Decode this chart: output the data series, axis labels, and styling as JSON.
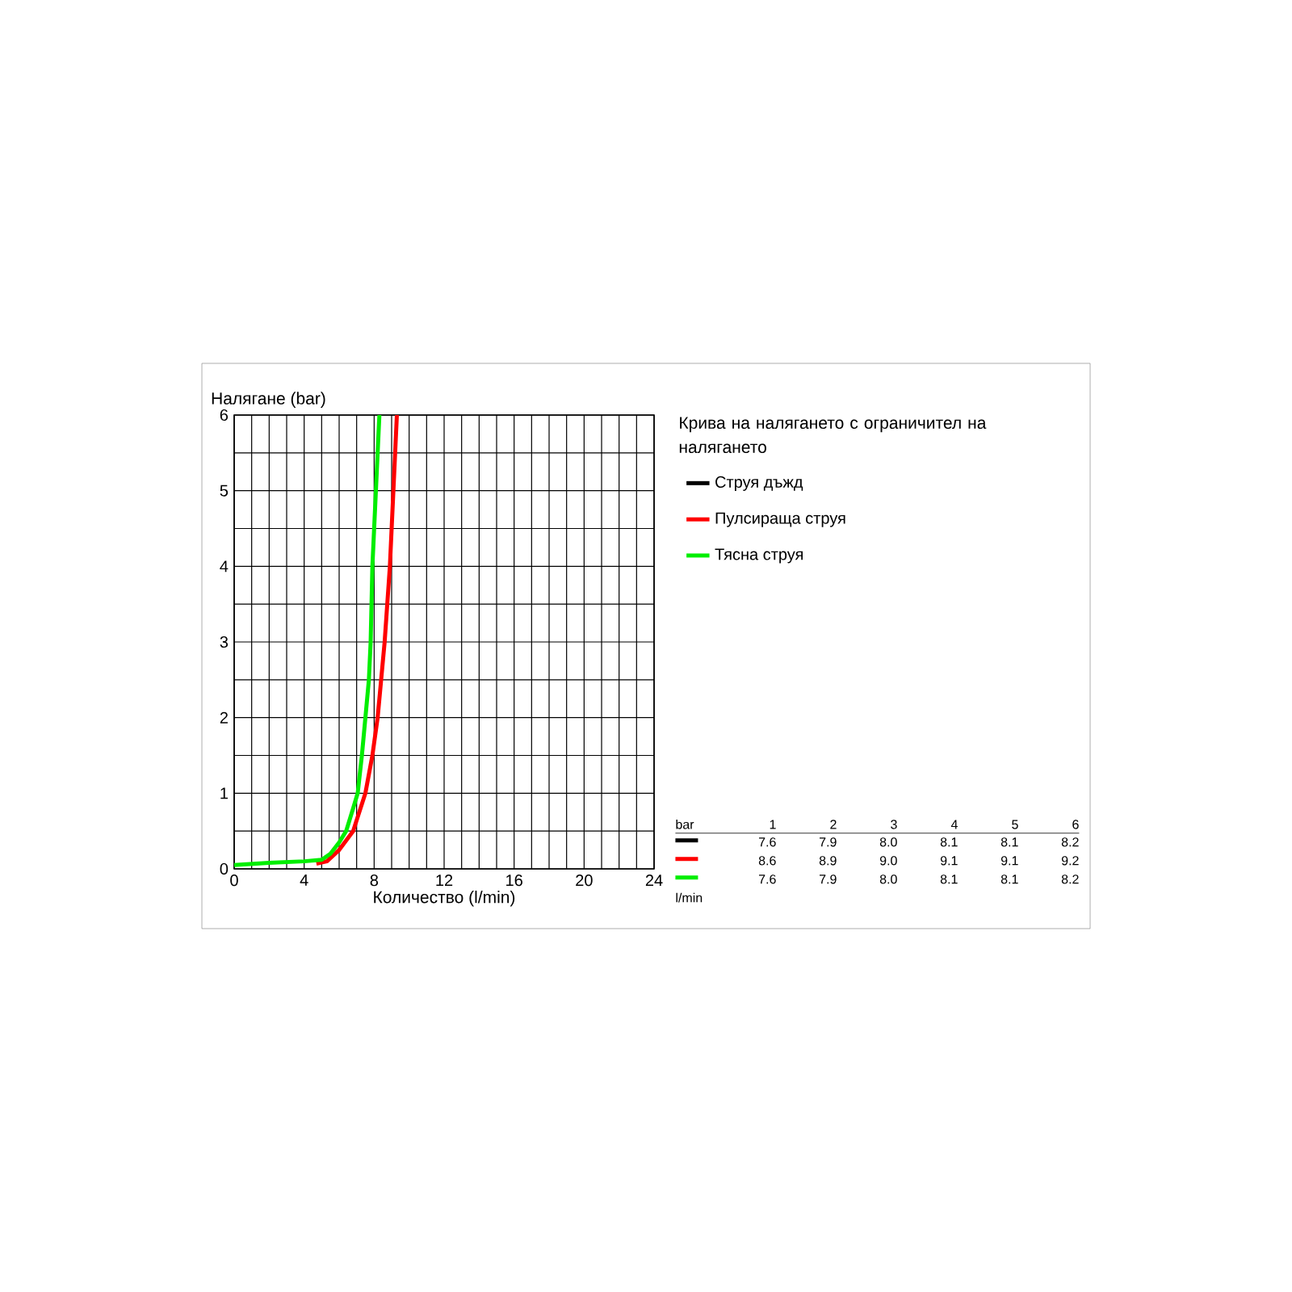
{
  "chart_data": {
    "type": "line",
    "title": "Крива на налягането с ограничител на налягането",
    "xlabel": "Количество (l/min)",
    "ylabel": "Налягане (bar)",
    "xlim": [
      0,
      24
    ],
    "ylim": [
      0,
      6
    ],
    "xticks": [
      0,
      {
        "value": 1,
        "label": null
      },
      {
        "value": 2,
        "label": null
      },
      {
        "value": 3,
        "label": null
      },
      4,
      {
        "value": 5,
        "label": null
      },
      {
        "value": 6,
        "label": null
      },
      {
        "value": 7,
        "label": null
      },
      8,
      {
        "value": 9,
        "label": null
      },
      {
        "value": 10,
        "label": null
      },
      {
        "value": 11,
        "label": null
      },
      12,
      {
        "value": 13,
        "label": null
      },
      {
        "value": 14,
        "label": null
      },
      {
        "value": 15,
        "label": null
      },
      16,
      {
        "value": 17,
        "label": null
      },
      {
        "value": 18,
        "label": null
      },
      {
        "value": 19,
        "label": null
      },
      20,
      {
        "value": 21,
        "label": null
      },
      {
        "value": 22,
        "label": null
      },
      {
        "value": 23,
        "label": null
      },
      24
    ],
    "yticks": [
      0,
      {
        "value": 0.5,
        "label": null
      },
      1,
      {
        "value": 1.5,
        "label": null
      },
      2,
      {
        "value": 2.5,
        "label": null
      },
      3,
      {
        "value": 3.5,
        "label": null
      },
      4,
      {
        "value": 4.5,
        "label": null
      },
      5,
      {
        "value": 5.5,
        "label": null
      },
      6
    ],
    "grid": true,
    "legend": "right",
    "marker": "none",
    "line_style": "solid",
    "series": [
      {
        "name": "Струя дъжд",
        "color": "#000000"
      },
      {
        "name": "Пулсираща струя",
        "color": "#ff0000",
        "x": [
          4.7,
          5.3,
          6.0,
          6.8,
          7.5,
          7.9,
          8.2,
          8.6,
          8.9,
          9.1,
          9.3
        ],
        "values": [
          0.07,
          0.1,
          0.25,
          0.5,
          1,
          1.5,
          2,
          3,
          4,
          5,
          6
        ]
      },
      {
        "name": "Тясна струя",
        "color": "#00ee00",
        "x": [
          0,
          2,
          4,
          5,
          5.5,
          6,
          6.4,
          6.8,
          7.06,
          7.3,
          7.5,
          7.7,
          7.8,
          7.9,
          8.1,
          8.3
        ],
        "values": [
          0.05,
          0.08,
          0.1,
          0.12,
          0.2,
          0.35,
          0.5,
          0.8,
          1,
          1.5,
          2,
          2.5,
          3,
          4,
          5,
          6
        ]
      }
    ],
    "annotations": [
      "bar",
      "1",
      "2",
      "3",
      "4",
      "5",
      "6",
      "7.6",
      "7.9",
      "8.0",
      "8.1",
      "8.1",
      "8.2",
      "8.6",
      "8.9",
      "9.0",
      "9.1",
      "9.1",
      "9.2",
      "7.6",
      "7.9",
      "8.0",
      "8.1",
      "8.1",
      "8.2",
      "l/min"
    ]
  }
}
